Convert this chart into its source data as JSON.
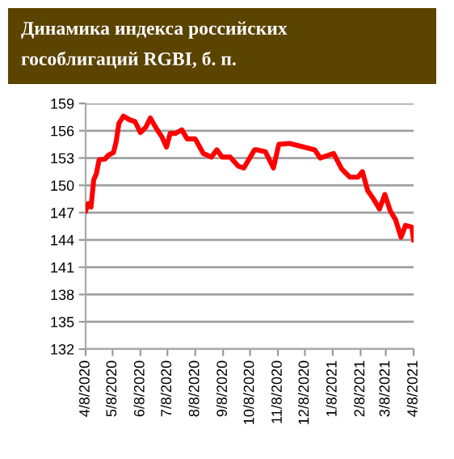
{
  "chart_data": {
    "type": "line",
    "title": "Динамика индекса российских\nгособлигаций RGBI, б. п.",
    "x": [
      "2020-04-08",
      "2020-04-11",
      "2020-04-14",
      "2020-04-17",
      "2020-04-20",
      "2020-04-23",
      "2020-04-30",
      "2020-05-03",
      "2020-05-09",
      "2020-05-12",
      "2020-05-15",
      "2020-05-20",
      "2020-05-27",
      "2020-06-02",
      "2020-06-08",
      "2020-06-14",
      "2020-06-19",
      "2020-06-26",
      "2020-07-02",
      "2020-07-07",
      "2020-07-11",
      "2020-07-17",
      "2020-07-24",
      "2020-07-30",
      "2020-08-08",
      "2020-08-17",
      "2020-08-26",
      "2020-09-01",
      "2020-09-07",
      "2020-09-16",
      "2020-09-25",
      "2020-10-01",
      "2020-10-07",
      "2020-10-13",
      "2020-10-16",
      "2020-10-25",
      "2020-11-03",
      "2020-11-09",
      "2020-11-21",
      "2020-12-07",
      "2020-12-19",
      "2020-12-25",
      "2021-01-09",
      "2021-01-18",
      "2021-01-27",
      "2021-02-05",
      "2021-02-10",
      "2021-02-16",
      "2021-02-23",
      "2021-03-01",
      "2021-03-07",
      "2021-03-13",
      "2021-03-19",
      "2021-03-25",
      "2021-03-30",
      "2021-04-06",
      "2021-04-08"
    ],
    "series": [
      {
        "color": "#ff0000",
        "values": [
          147.2,
          148.0,
          147.6,
          150.6,
          151.3,
          152.8,
          152.9,
          153.3,
          153.6,
          154.8,
          156.8,
          157.6,
          157.2,
          157.0,
          155.8,
          156.4,
          157.4,
          156.2,
          155.3,
          154.2,
          155.7,
          155.7,
          156.1,
          155.1,
          155.1,
          153.5,
          153.1,
          153.9,
          153.1,
          153.1,
          152.1,
          151.9,
          152.9,
          153.9,
          153.9,
          153.7,
          151.9,
          154.5,
          154.6,
          154.2,
          153.9,
          153.0,
          153.5,
          151.8,
          150.9,
          150.9,
          151.5,
          149.4,
          148.4,
          147.4,
          149.0,
          147.2,
          146.2,
          144.3,
          145.6,
          145.4,
          144.0
        ]
      }
    ],
    "xlim": [
      "2020-04-08",
      "2021-04-08"
    ],
    "xticks": [
      {
        "value": "2020-04-08",
        "label": "4/8/2020"
      },
      {
        "value": "2020-05-08",
        "label": "5/8/2020"
      },
      {
        "value": "2020-06-08",
        "label": "6/8/2020"
      },
      {
        "value": "2020-07-08",
        "label": "7/8/2020"
      },
      {
        "value": "2020-08-08",
        "label": "8/8/2020"
      },
      {
        "value": "2020-09-08",
        "label": "9/8/2020"
      },
      {
        "value": "2020-10-08",
        "label": "10/8/2020"
      },
      {
        "value": "2020-11-08",
        "label": "11/8/2020"
      },
      {
        "value": "2020-12-08",
        "label": "12/8/2020"
      },
      {
        "value": "2021-01-08",
        "label": "1/8/2021"
      },
      {
        "value": "2021-02-08",
        "label": "2/8/2021"
      },
      {
        "value": "2021-03-08",
        "label": "3/8/2021"
      },
      {
        "value": "2021-04-08",
        "label": "4/8/2021"
      }
    ],
    "ylim": [
      132,
      159
    ],
    "yticks": [
      132,
      135,
      138,
      141,
      144,
      147,
      150,
      153,
      156,
      159
    ],
    "grid": "y",
    "line_style": "solid",
    "marker": "none",
    "legend": false
  }
}
